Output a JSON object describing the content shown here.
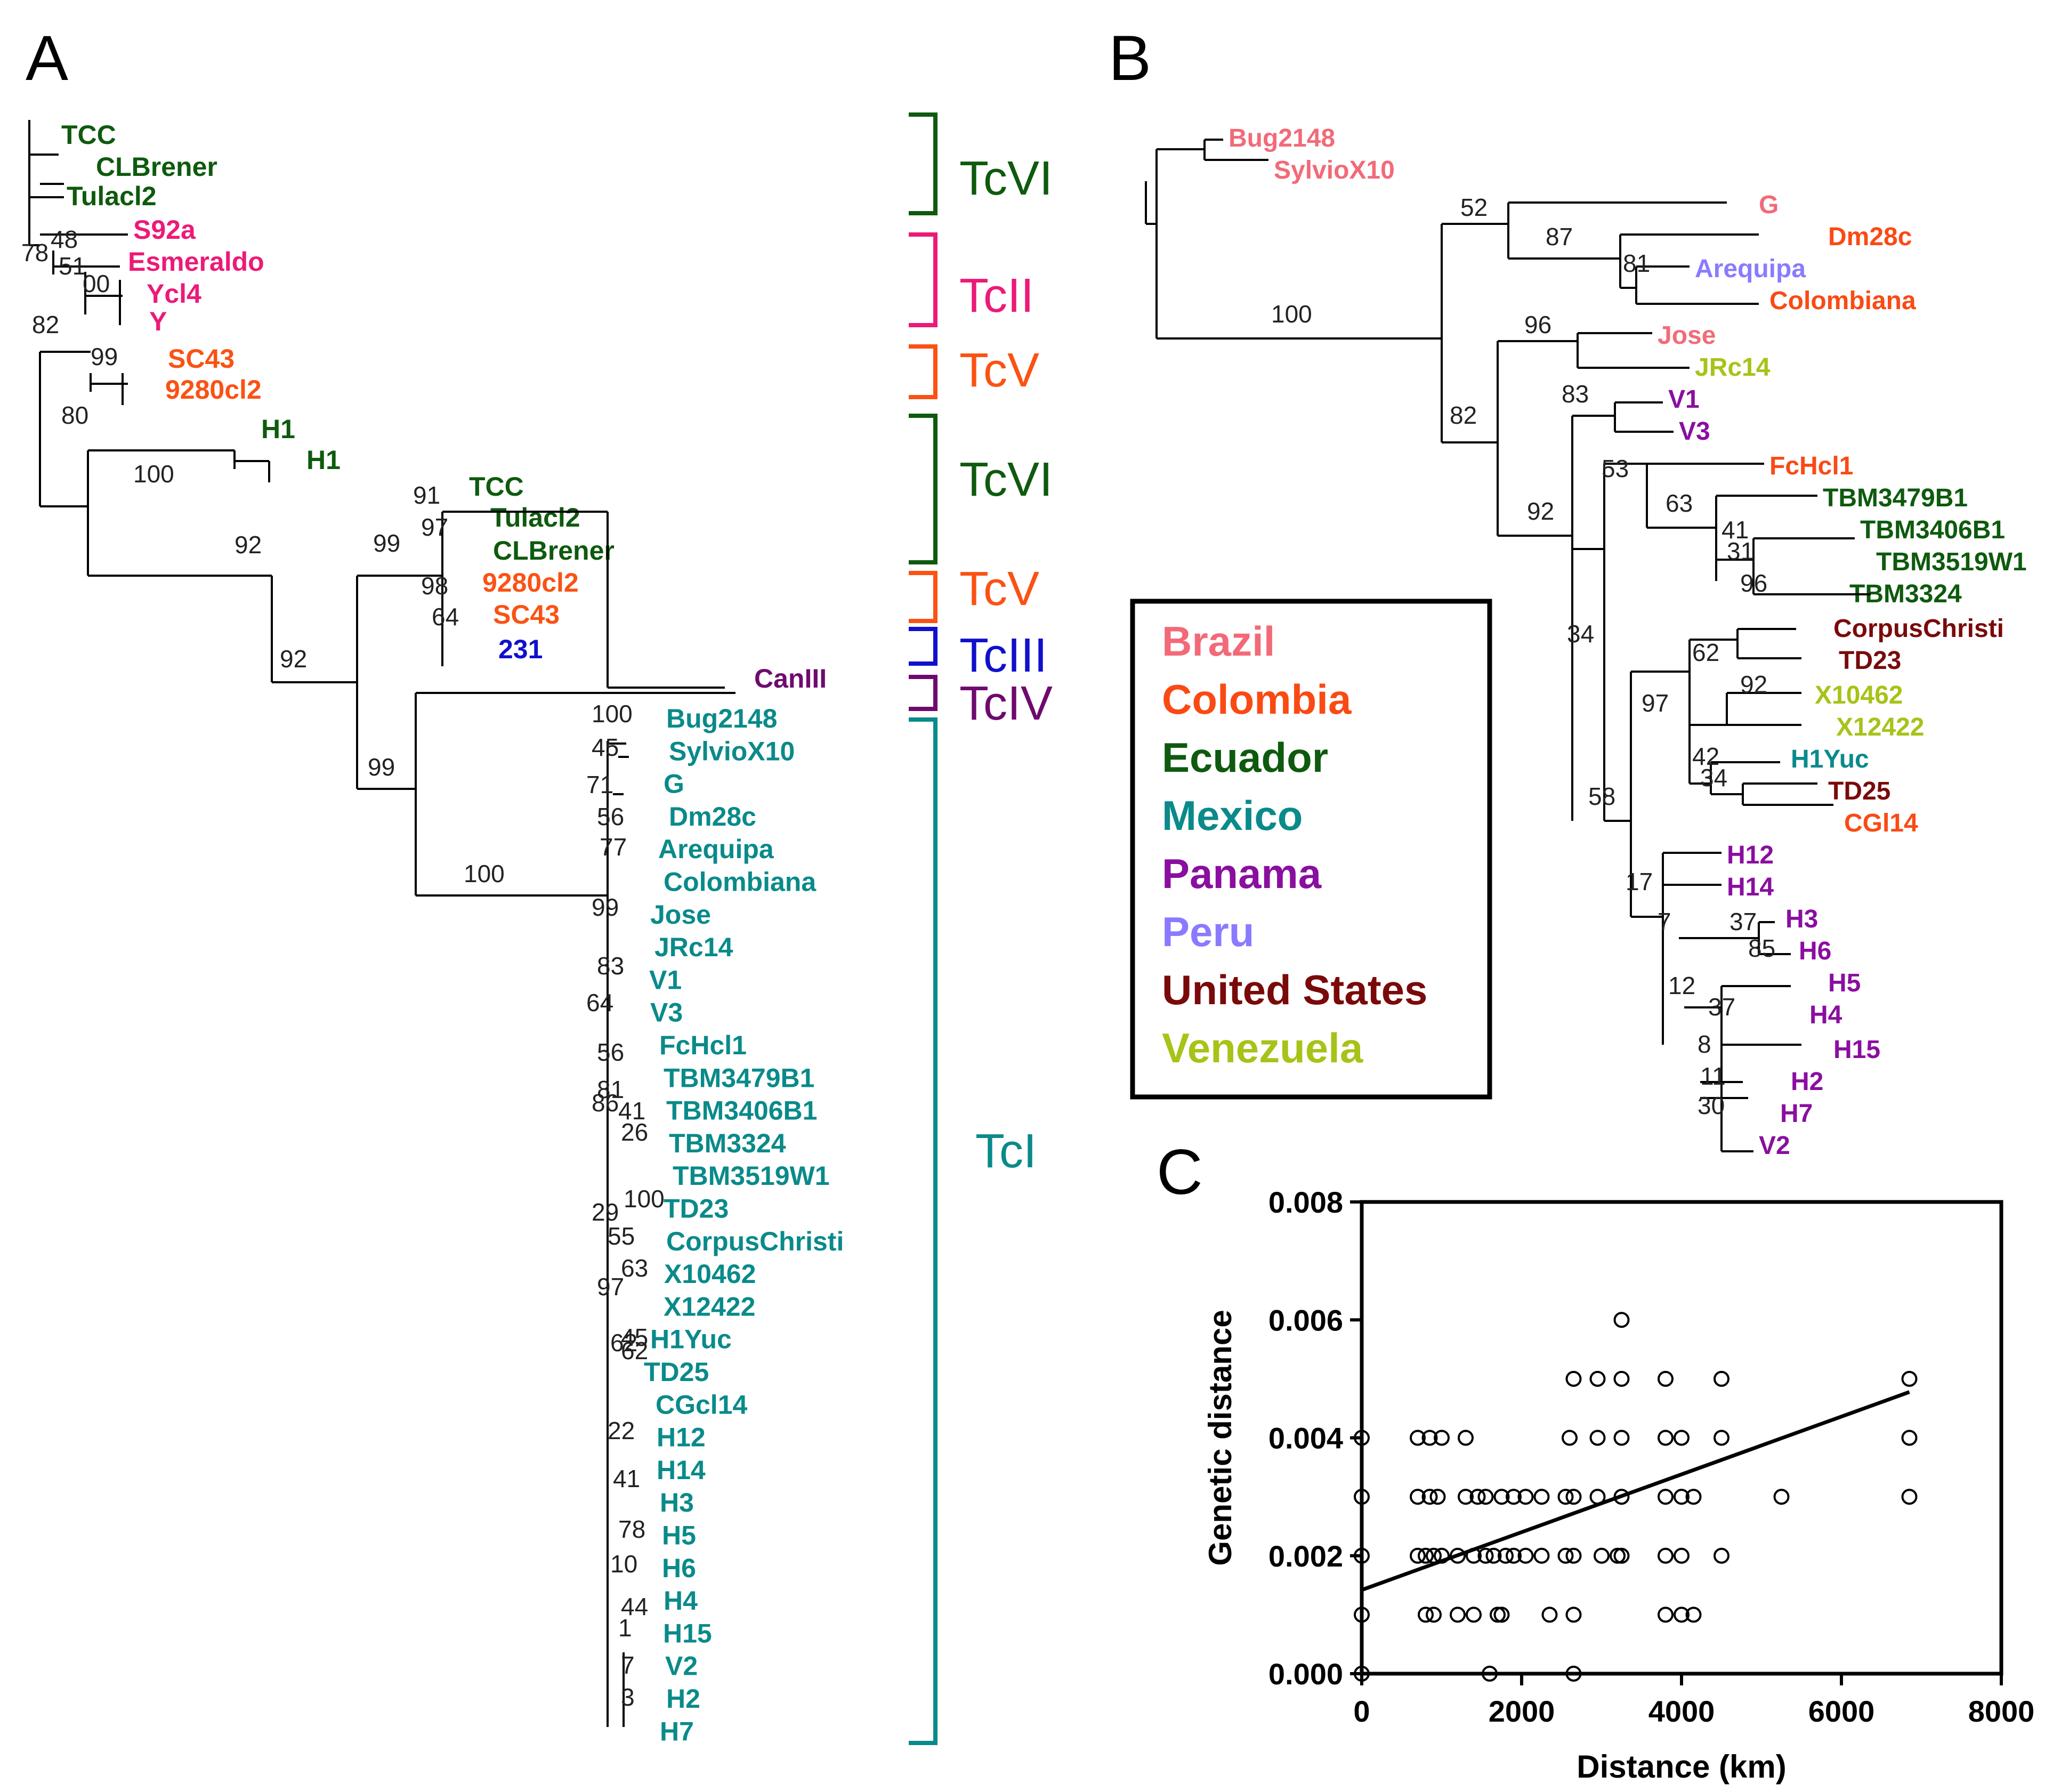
{
  "colors": {
    "Brazil": "#f26a78",
    "Colombia": "#fa4a14",
    "Ecuador": "#0e5a0e",
    "Mexico": "#0a8a8a",
    "Panama": "#8a0ea0",
    "Peru": "#8a7aff",
    "United States": "#7a0a0a",
    "Venezuela": "#a8c218",
    "TcII": "#ec1a78",
    "TcV": "#fa5214",
    "TcIII": "#1010cc",
    "TcIV": "#6e0a6e",
    "line": "#000000"
  },
  "panel_letters": [
    "A",
    "B",
    "C"
  ],
  "panel_a": {
    "dtus": [
      {
        "label": "TcVI",
        "color": "Ecuador"
      },
      {
        "label": "TcII",
        "color": "TcII"
      },
      {
        "label": "TcV",
        "color": "TcV"
      },
      {
        "label": "TcVI",
        "color": "Ecuador"
      },
      {
        "label": "TcV",
        "color": "TcV"
      },
      {
        "label": "TcIII",
        "color": "TcIII"
      },
      {
        "label": "TcIV",
        "color": "TcIV"
      },
      {
        "label": "TcI",
        "color": "Mexico"
      }
    ],
    "taxa": [
      {
        "label": "TCC",
        "color": "Ecuador"
      },
      {
        "label": "CLBrener",
        "color": "Ecuador"
      },
      {
        "label": "Tulacl2",
        "color": "Ecuador"
      },
      {
        "label": "S92a",
        "color": "TcII"
      },
      {
        "label": "Esmeraldo",
        "color": "TcII"
      },
      {
        "label": "Ycl4",
        "color": "TcII"
      },
      {
        "label": "Y",
        "color": "TcII"
      },
      {
        "label": "SC43",
        "color": "TcV"
      },
      {
        "label": "9280cl2",
        "color": "TcV"
      },
      {
        "label": "H1",
        "color": "Ecuador"
      },
      {
        "label": "H1",
        "color": "Ecuador"
      },
      {
        "label": "TCC",
        "color": "Ecuador"
      },
      {
        "label": "Tulacl2",
        "color": "Ecuador"
      },
      {
        "label": "CLBrener",
        "color": "Ecuador"
      },
      {
        "label": "9280cl2",
        "color": "TcV"
      },
      {
        "label": "SC43",
        "color": "TcV"
      },
      {
        "label": "231",
        "color": "TcIII"
      },
      {
        "label": "CanIII",
        "color": "TcIV"
      },
      {
        "label": "Bug2148",
        "color": "Mexico"
      },
      {
        "label": "SylvioX10",
        "color": "Mexico"
      },
      {
        "label": "G",
        "color": "Mexico"
      },
      {
        "label": "Dm28c",
        "color": "Mexico"
      },
      {
        "label": "Arequipa",
        "color": "Mexico"
      },
      {
        "label": "Colombiana",
        "color": "Mexico"
      },
      {
        "label": "Jose",
        "color": "Mexico"
      },
      {
        "label": "JRc14",
        "color": "Mexico"
      },
      {
        "label": "V1",
        "color": "Mexico"
      },
      {
        "label": "V3",
        "color": "Mexico"
      },
      {
        "label": "FcHcl1",
        "color": "Mexico"
      },
      {
        "label": "TBM3479B1",
        "color": "Mexico"
      },
      {
        "label": "TBM3406B1",
        "color": "Mexico"
      },
      {
        "label": "TBM3324",
        "color": "Mexico"
      },
      {
        "label": "TBM3519W1",
        "color": "Mexico"
      },
      {
        "label": "TD23",
        "color": "Mexico"
      },
      {
        "label": "CorpusChristi",
        "color": "Mexico"
      },
      {
        "label": "X10462",
        "color": "Mexico"
      },
      {
        "label": "X12422",
        "color": "Mexico"
      },
      {
        "label": "H1Yuc",
        "color": "Mexico"
      },
      {
        "label": "TD25",
        "color": "Mexico"
      },
      {
        "label": "CGcl14",
        "color": "Mexico"
      },
      {
        "label": "H12",
        "color": "Mexico"
      },
      {
        "label": "H14",
        "color": "Mexico"
      },
      {
        "label": "H3",
        "color": "Mexico"
      },
      {
        "label": "H5",
        "color": "Mexico"
      },
      {
        "label": "H6",
        "color": "Mexico"
      },
      {
        "label": "H4",
        "color": "Mexico"
      },
      {
        "label": "H15",
        "color": "Mexico"
      },
      {
        "label": "V2",
        "color": "Mexico"
      },
      {
        "label": "H2",
        "color": "Mexico"
      },
      {
        "label": "H7",
        "color": "Mexico"
      }
    ],
    "bootstraps": [
      "48",
      "78",
      "51",
      "00",
      "82",
      "99",
      "80",
      "100",
      "92",
      "92",
      "91",
      "97",
      "99",
      "98",
      "64",
      "99",
      "100",
      "100",
      "45",
      "71",
      "56",
      "77",
      "99",
      "83",
      "64",
      "56",
      "81",
      "86",
      "41",
      "26",
      "100",
      "29",
      "55",
      "63",
      "97",
      "45",
      "62",
      "62",
      "22",
      "41",
      "78",
      "10",
      "44",
      "1",
      "7",
      "3"
    ]
  },
  "panel_b": {
    "taxa": [
      {
        "label": "Bug2148",
        "color": "Brazil"
      },
      {
        "label": "SylvioX10",
        "color": "Brazil"
      },
      {
        "label": "G",
        "color": "Brazil"
      },
      {
        "label": "Dm28c",
        "color": "Colombia"
      },
      {
        "label": "Arequipa",
        "color": "Peru"
      },
      {
        "label": "Colombiana",
        "color": "Colombia"
      },
      {
        "label": "Jose",
        "color": "Brazil"
      },
      {
        "label": "JRc14",
        "color": "Venezuela"
      },
      {
        "label": "V1",
        "color": "Panama"
      },
      {
        "label": "V3",
        "color": "Panama"
      },
      {
        "label": "FcHcl1",
        "color": "Colombia"
      },
      {
        "label": "TBM3479B1",
        "color": "Ecuador"
      },
      {
        "label": "TBM3406B1",
        "color": "Ecuador"
      },
      {
        "label": "TBM3519W1",
        "color": "Ecuador"
      },
      {
        "label": "TBM3324",
        "color": "Ecuador"
      },
      {
        "label": "CorpusChristi",
        "color": "United States"
      },
      {
        "label": "TD23",
        "color": "United States"
      },
      {
        "label": "X10462",
        "color": "Venezuela"
      },
      {
        "label": "X12422",
        "color": "Venezuela"
      },
      {
        "label": "H1Yuc",
        "color": "Mexico"
      },
      {
        "label": "TD25",
        "color": "United States"
      },
      {
        "label": "CGl14",
        "color": "Colombia"
      },
      {
        "label": "H12",
        "color": "Panama"
      },
      {
        "label": "H14",
        "color": "Panama"
      },
      {
        "label": "H3",
        "color": "Panama"
      },
      {
        "label": "H6",
        "color": "Panama"
      },
      {
        "label": "H5",
        "color": "Panama"
      },
      {
        "label": "H4",
        "color": "Panama"
      },
      {
        "label": "H15",
        "color": "Panama"
      },
      {
        "label": "H2",
        "color": "Panama"
      },
      {
        "label": "H7",
        "color": "Panama"
      },
      {
        "label": "V2",
        "color": "Panama"
      }
    ],
    "bootstraps": [
      "52",
      "87",
      "81",
      "100",
      "96",
      "83",
      "82",
      "53",
      "63",
      "41",
      "31",
      "92",
      "96",
      "34",
      "62",
      "92",
      "97",
      "42",
      "34",
      "58",
      "17",
      "7",
      "37",
      "85",
      "12",
      "37",
      "8",
      "11",
      "30"
    ],
    "legend": [
      "Brazil",
      "Colombia",
      "Ecuador",
      "Mexico",
      "Panama",
      "Peru",
      "United States",
      "Venezuela"
    ]
  },
  "chart_data": {
    "type": "scatter",
    "xlabel": "Distance (km)",
    "ylabel": "Genetic distance",
    "xlim": [
      0,
      8000
    ],
    "ylim": [
      0,
      0.008
    ],
    "xticks": [
      "0",
      "2000",
      "4000",
      "6000",
      "8000"
    ],
    "yticks": [
      "0.000",
      "0.002",
      "0.004",
      "0.006",
      "0.008"
    ],
    "points": [
      [
        0,
        0
      ],
      [
        0,
        0.001
      ],
      [
        0,
        0.002
      ],
      [
        0,
        0.003
      ],
      [
        0,
        0.004
      ],
      [
        1600,
        0
      ],
      [
        2650,
        0
      ],
      [
        800,
        0.001
      ],
      [
        900,
        0.001
      ],
      [
        1200,
        0.001
      ],
      [
        1400,
        0.001
      ],
      [
        1700,
        0.001
      ],
      [
        1750,
        0.001
      ],
      [
        2350,
        0.001
      ],
      [
        2650,
        0.001
      ],
      [
        3800,
        0.001
      ],
      [
        4000,
        0.001
      ],
      [
        4150,
        0.001
      ],
      [
        700,
        0.002
      ],
      [
        800,
        0.002
      ],
      [
        900,
        0.002
      ],
      [
        1000,
        0.002
      ],
      [
        1200,
        0.002
      ],
      [
        1400,
        0.002
      ],
      [
        1550,
        0.002
      ],
      [
        1650,
        0.002
      ],
      [
        1800,
        0.002
      ],
      [
        1900,
        0.002
      ],
      [
        2050,
        0.002
      ],
      [
        2250,
        0.002
      ],
      [
        2550,
        0.002
      ],
      [
        2650,
        0.002
      ],
      [
        3000,
        0.002
      ],
      [
        3200,
        0.002
      ],
      [
        3250,
        0.002
      ],
      [
        3800,
        0.002
      ],
      [
        4000,
        0.002
      ],
      [
        4500,
        0.002
      ],
      [
        700,
        0.003
      ],
      [
        850,
        0.003
      ],
      [
        950,
        0.003
      ],
      [
        1300,
        0.003
      ],
      [
        1450,
        0.003
      ],
      [
        1550,
        0.003
      ],
      [
        1750,
        0.003
      ],
      [
        1900,
        0.003
      ],
      [
        2050,
        0.003
      ],
      [
        2250,
        0.003
      ],
      [
        2550,
        0.003
      ],
      [
        2650,
        0.003
      ],
      [
        2950,
        0.003
      ],
      [
        3250,
        0.003
      ],
      [
        3800,
        0.003
      ],
      [
        4000,
        0.003
      ],
      [
        4150,
        0.003
      ],
      [
        5250,
        0.003
      ],
      [
        6850,
        0.003
      ],
      [
        700,
        0.004
      ],
      [
        850,
        0.004
      ],
      [
        1000,
        0.004
      ],
      [
        1300,
        0.004
      ],
      [
        2600,
        0.004
      ],
      [
        2950,
        0.004
      ],
      [
        3250,
        0.004
      ],
      [
        3800,
        0.004
      ],
      [
        4000,
        0.004
      ],
      [
        4500,
        0.004
      ],
      [
        6850,
        0.004
      ],
      [
        2650,
        0.005
      ],
      [
        2950,
        0.005
      ],
      [
        3250,
        0.005
      ],
      [
        3800,
        0.005
      ],
      [
        4500,
        0.005
      ],
      [
        6850,
        0.005
      ],
      [
        3250,
        0.006
      ]
    ],
    "regression": {
      "intercept": 0.00142,
      "slope": 4.9e-07
    }
  }
}
